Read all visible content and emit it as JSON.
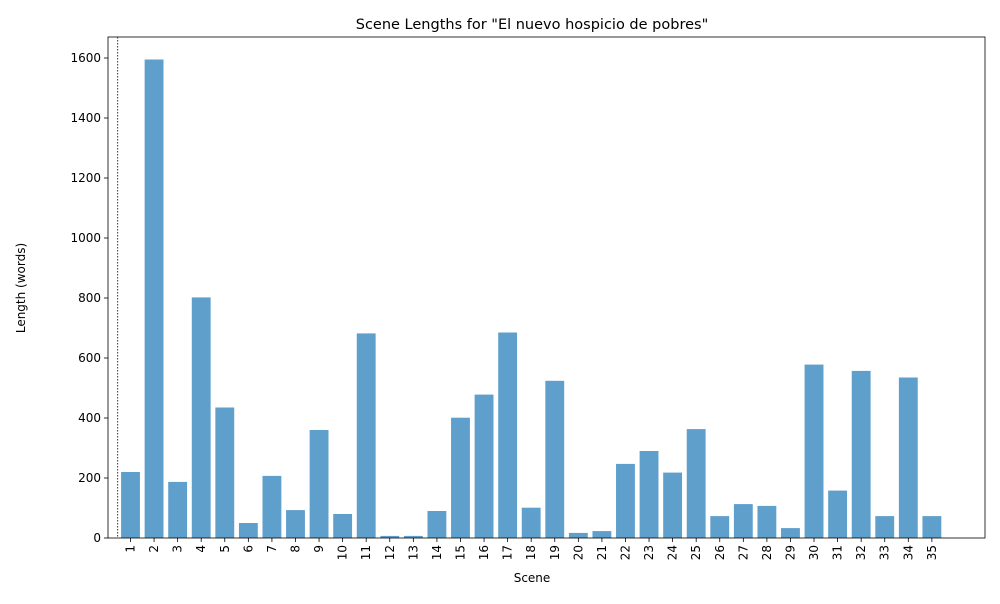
{
  "chart_data": {
    "type": "bar",
    "title": "Scene Lengths for \"El nuevo hospicio de pobres\"",
    "xlabel": "Scene",
    "ylabel": "Length (words)",
    "categories": [
      "1",
      "2",
      "3",
      "4",
      "5",
      "6",
      "7",
      "8",
      "9",
      "10",
      "11",
      "12",
      "13",
      "14",
      "15",
      "16",
      "17",
      "18",
      "19",
      "20",
      "21",
      "22",
      "23",
      "24",
      "25",
      "26",
      "27",
      "28",
      "29",
      "30",
      "31",
      "32",
      "33",
      "34",
      "35"
    ],
    "values": [
      220,
      1595,
      187,
      802,
      435,
      50,
      207,
      93,
      360,
      80,
      682,
      7,
      7,
      90,
      401,
      478,
      685,
      101,
      524,
      17,
      23,
      247,
      290,
      218,
      363,
      73,
      113,
      107,
      33,
      578,
      158,
      557,
      73,
      535,
      73
    ],
    "ylim": [
      0,
      1670
    ],
    "yticks": [
      0,
      200,
      400,
      600,
      800,
      1000,
      1200,
      1400,
      1600
    ],
    "bar_color": "#5f9fcc",
    "grid": false,
    "reference_line": {
      "x_before_category": "1",
      "style": "dotted",
      "color": "#000000"
    }
  }
}
